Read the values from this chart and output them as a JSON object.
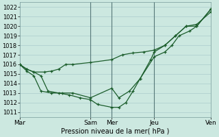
{
  "background_color": "#cce8e0",
  "grid_color": "#aacccc",
  "line_color": "#1a5c2a",
  "axis_label": "Pression niveau de la mer( hPa )",
  "xlim": [
    0,
    108
  ],
  "ylim": [
    1010.5,
    1022.5
  ],
  "yticks": [
    1011,
    1012,
    1013,
    1014,
    1015,
    1016,
    1017,
    1018,
    1019,
    1020,
    1021,
    1022
  ],
  "xtick_positions": [
    0,
    40,
    52,
    76,
    108
  ],
  "xtick_labels": [
    "Mar",
    "Sam",
    "Mer",
    "Jeu",
    "Ven"
  ],
  "vlines": [
    40,
    52,
    76
  ],
  "line1_x": [
    0,
    4,
    8,
    14,
    18,
    22,
    26,
    30,
    40,
    52,
    58,
    64,
    70,
    76,
    82,
    88,
    94,
    100,
    108
  ],
  "line1_y": [
    1016.0,
    1015.5,
    1015.2,
    1015.2,
    1015.3,
    1015.5,
    1016.0,
    1016.0,
    1016.2,
    1016.5,
    1017.0,
    1017.2,
    1017.3,
    1017.5,
    1018.0,
    1019.0,
    1020.0,
    1020.0,
    1021.8
  ],
  "line2_x": [
    0,
    4,
    8,
    12,
    18,
    24,
    30,
    40,
    52,
    56,
    62,
    68,
    74,
    76,
    82,
    88,
    94,
    100,
    108
  ],
  "line2_y": [
    1016.0,
    1015.3,
    1014.8,
    1013.2,
    1013.0,
    1013.0,
    1013.0,
    1012.5,
    1013.5,
    1012.5,
    1013.2,
    1014.5,
    1016.5,
    1017.3,
    1018.0,
    1019.0,
    1020.0,
    1020.2,
    1021.5
  ],
  "line3_x": [
    0,
    4,
    8,
    12,
    16,
    22,
    28,
    34,
    40,
    44,
    52,
    56,
    60,
    64,
    68,
    76,
    82,
    86,
    90,
    96,
    100,
    108
  ],
  "line3_y": [
    1016.0,
    1015.5,
    1015.2,
    1014.8,
    1013.2,
    1013.0,
    1012.8,
    1012.5,
    1012.3,
    1011.8,
    1011.5,
    1011.5,
    1012.0,
    1013.2,
    1014.5,
    1016.8,
    1017.3,
    1018.0,
    1019.0,
    1019.5,
    1020.0,
    1021.8
  ]
}
